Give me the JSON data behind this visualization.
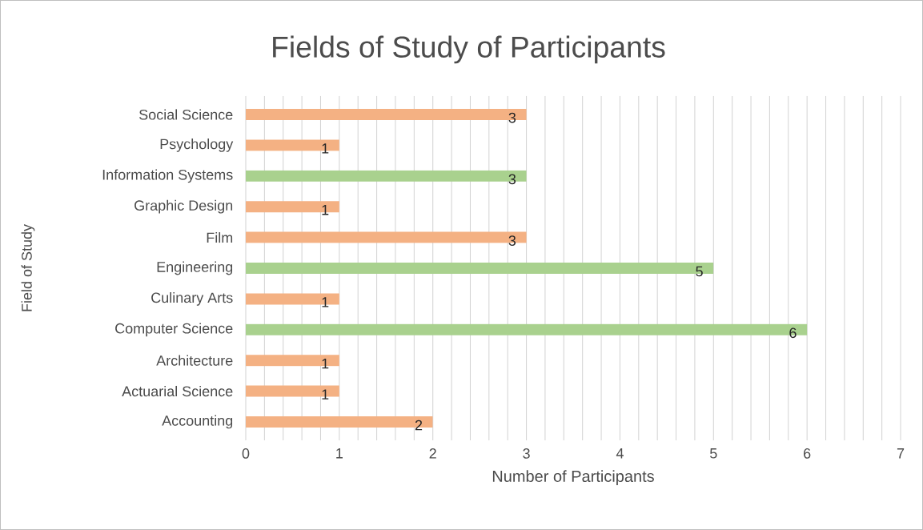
{
  "chart_data": {
    "type": "bar",
    "orientation": "horizontal",
    "title": "Fields of Study of Participants",
    "xlabel": "Number of Participants",
    "ylabel": "Field of Study",
    "categories": [
      "Social Science",
      "Psychology",
      "Information Systems",
      "Graphic Design",
      "Film",
      "Engineering",
      "Culinary Arts",
      "Computer Science",
      "Architecture",
      "Actuarial Science",
      "Accounting"
    ],
    "values": [
      3,
      1,
      3,
      1,
      3,
      5,
      1,
      6,
      1,
      1,
      2
    ],
    "colors": [
      "#f4b183",
      "#f4b183",
      "#a9d18e",
      "#f4b183",
      "#f4b183",
      "#a9d18e",
      "#f4b183",
      "#a9d18e",
      "#f4b183",
      "#f4b183",
      "#f4b183"
    ],
    "xlim": [
      0,
      7
    ],
    "xticks": [
      0,
      1,
      2,
      3,
      4,
      5,
      6,
      7
    ],
    "grid": "x",
    "data_labels": true
  }
}
